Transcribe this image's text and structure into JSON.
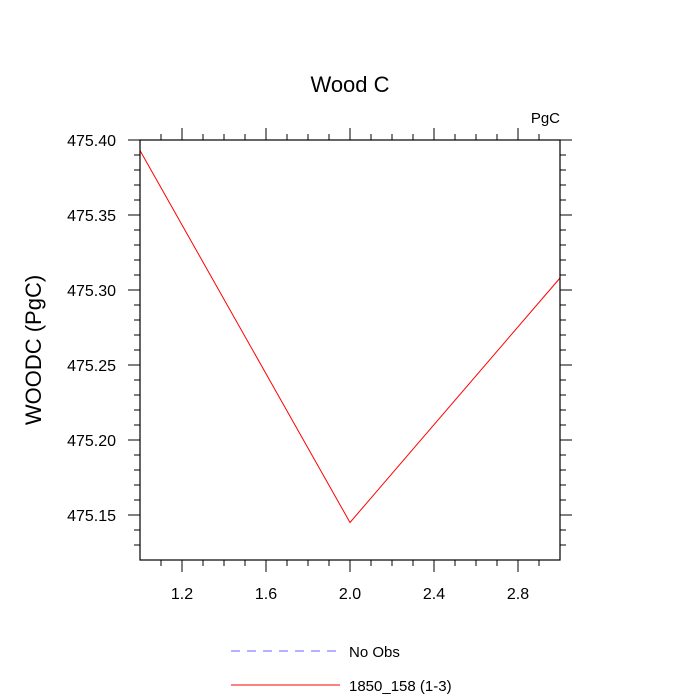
{
  "chart_data": {
    "type": "line",
    "title": "Wood C",
    "units_label": "PgC",
    "xlabel": "",
    "ylabel": "WOODC  (PgC)",
    "xlim": [
      1.0,
      3.0
    ],
    "ylim": [
      475.12,
      475.4
    ],
    "x_ticks": [
      1.2,
      1.6,
      2.0,
      2.4,
      2.8
    ],
    "x_tick_labels": [
      "1.2",
      "1.6",
      "2.0",
      "2.4",
      "2.8"
    ],
    "y_ticks": [
      475.15,
      475.2,
      475.25,
      475.3,
      475.35,
      475.4
    ],
    "y_tick_labels": [
      "475.15",
      "475.20",
      "475.25",
      "475.30",
      "475.35",
      "475.40"
    ],
    "grid": false,
    "legend_position": "bottom-center",
    "series": [
      {
        "name": "No Obs",
        "color": "#6666ff",
        "dash": "dashed",
        "x": [],
        "y": []
      },
      {
        "name": "1850_158 (1-3)",
        "color": "#ff0000",
        "dash": "solid",
        "x": [
          1.0,
          2.0,
          3.0
        ],
        "y": [
          475.393,
          475.145,
          475.308
        ]
      }
    ]
  }
}
